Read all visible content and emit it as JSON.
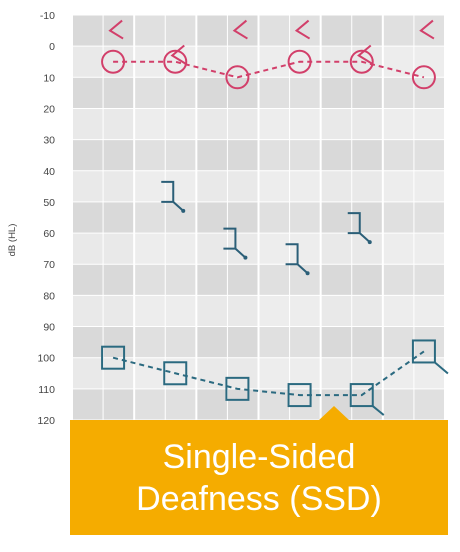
{
  "chart_data": {
    "type": "scatter",
    "chart_kind": "audiogram",
    "xlabel": "",
    "ylabel": "dB (HL)",
    "ylim": [
      -10,
      120
    ],
    "y_inverted": true,
    "yticks": [
      -10,
      0,
      10,
      20,
      30,
      40,
      50,
      60,
      70,
      80,
      90,
      100,
      110,
      120
    ],
    "x_positions": 6,
    "grid": true,
    "series": [
      {
        "marker": "circle",
        "color": "#d23f6a",
        "connected": true,
        "x": [
          1,
          2,
          3,
          4,
          5,
          6
        ],
        "y": [
          5,
          5,
          10,
          5,
          5,
          10
        ]
      },
      {
        "marker": "air-conduction-arrow",
        "color": "#d23f6a",
        "connected": false,
        "x": [
          1,
          2,
          3,
          4,
          5,
          6
        ],
        "y": [
          -5,
          3,
          -5,
          -5,
          3,
          -5
        ]
      },
      {
        "marker": "bone-conduction-bracket",
        "color": "#2b5f78",
        "connected": false,
        "x": [
          2,
          3,
          4,
          5
        ],
        "y": [
          50,
          65,
          70,
          60
        ]
      },
      {
        "marker": "square",
        "color": "#2b6a80",
        "connected": true,
        "x": [
          1,
          2,
          3,
          4,
          5,
          6
        ],
        "y": [
          100,
          105,
          110,
          112,
          112,
          98
        ]
      }
    ]
  },
  "callout": {
    "line1": "Single-Sided",
    "line2": "Deafness (SSD)",
    "color": "#f5ac00"
  }
}
